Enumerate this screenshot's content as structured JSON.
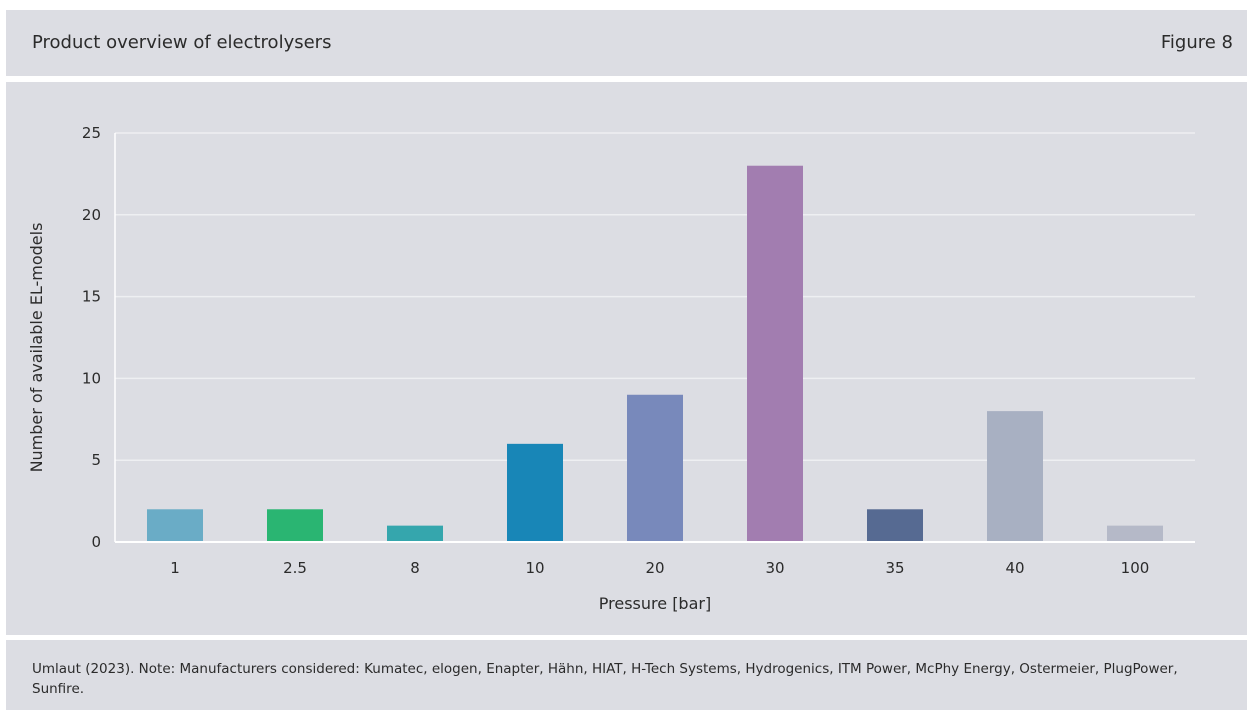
{
  "header": {
    "title": "Product overview of electrolysers",
    "figure_label": "Figure 8"
  },
  "footer": {
    "note": "Umlaut (2023). Note: Manufacturers considered: Kumatec, elogen, Enapter, Hähn, HIAT, H-Tech Systems, Hydrogenics, ITM Power, McPhy Energy, Ostermeier, PlugPower, Sunfire."
  },
  "chart_data": {
    "type": "bar",
    "title": "",
    "xlabel": "Pressure [bar]",
    "ylabel": "Number of available EL-models",
    "categories": [
      "1",
      "2.5",
      "8",
      "10",
      "20",
      "30",
      "35",
      "40",
      "100"
    ],
    "values": [
      2,
      2,
      1,
      6,
      9,
      23,
      2,
      8,
      1
    ],
    "colors": [
      "#6aacc6",
      "#2ab572",
      "#35a6ad",
      "#1886b7",
      "#7889bb",
      "#a27db0",
      "#566a92",
      "#a8b0c2",
      "#b5b9c8"
    ],
    "ylim": [
      0,
      25
    ],
    "yticks": [
      0,
      5,
      10,
      15,
      20,
      25
    ],
    "grid": true,
    "gridline_color": "#eeeff2",
    "legend": "none"
  }
}
